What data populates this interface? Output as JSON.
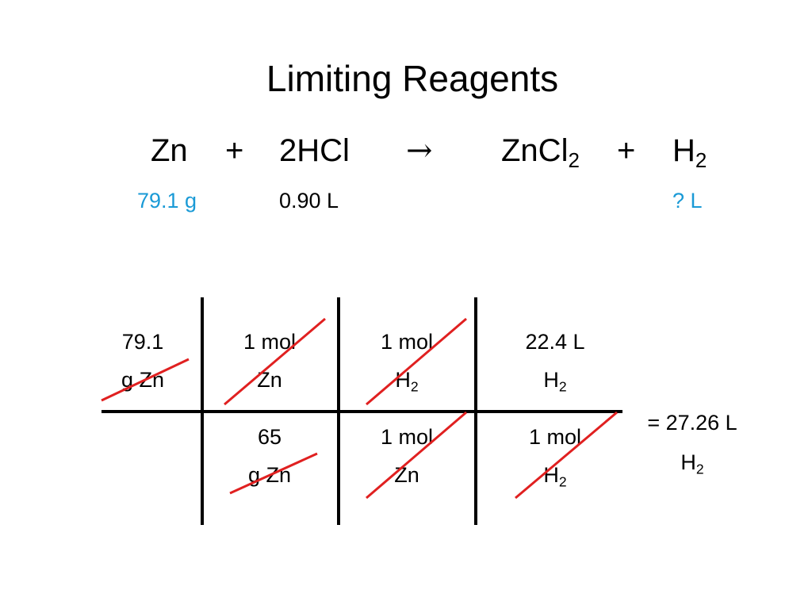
{
  "title": "Limiting Reagents",
  "equation": [
    {
      "base": "Zn"
    },
    {
      "base": "+"
    },
    {
      "base": "2HCl"
    },
    {
      "base": "→"
    },
    {
      "base": "ZnCl",
      "sub": "2"
    },
    {
      "base": "+"
    },
    {
      "base": "H",
      "sub": "2"
    }
  ],
  "quantities": {
    "zn": "79.1 g",
    "hcl": "0.90 L",
    "h2": "? L"
  },
  "table": {
    "numerator": [
      [
        {
          "text": "79.1"
        },
        {
          "text": "g Zn"
        }
      ],
      [
        {
          "text": "1 mol"
        },
        {
          "text": "Zn"
        }
      ],
      [
        {
          "text": "1 mol"
        },
        {
          "text": "H",
          "sub": "2"
        }
      ],
      [
        {
          "text": "22.4 L"
        },
        {
          "text": "H",
          "sub": "2"
        }
      ]
    ],
    "denominator": [
      [],
      [
        {
          "text": "65"
        },
        {
          "text": "g Zn"
        }
      ],
      [
        {
          "text": "1 mol"
        },
        {
          "text": "Zn"
        }
      ],
      [
        {
          "text": "1 mol"
        },
        {
          "text": "H",
          "sub": "2"
        }
      ]
    ],
    "result": [
      {
        "text": "= 27.26 L"
      },
      {
        "text": "H",
        "sub": "2"
      }
    ]
  }
}
